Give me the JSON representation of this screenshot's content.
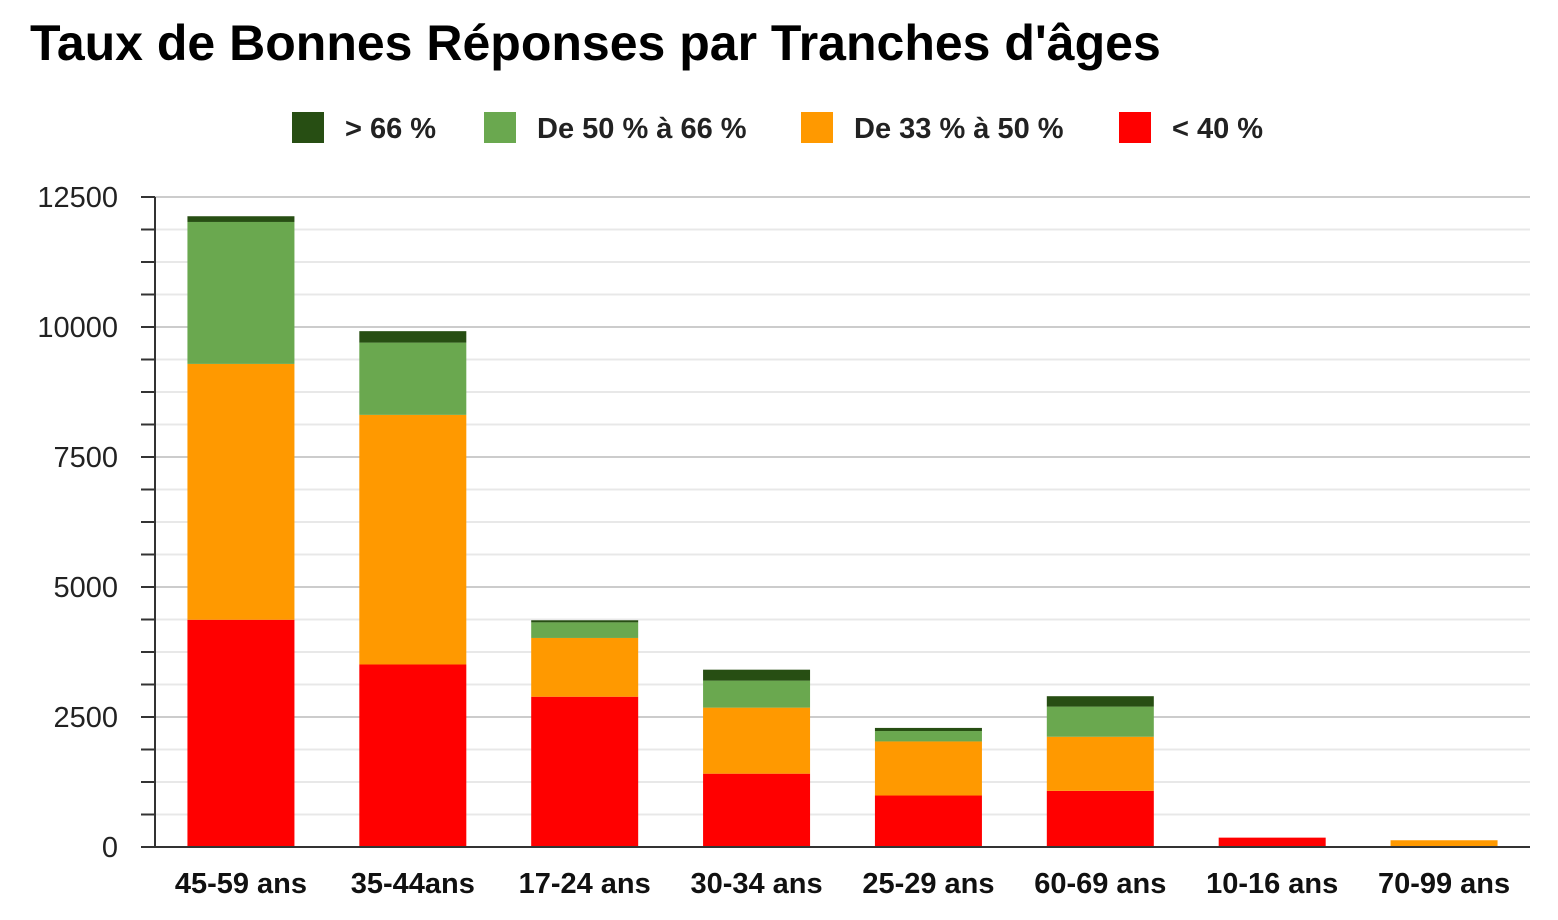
{
  "chart_data": {
    "type": "bar",
    "stacked": true,
    "title": "Taux de Bonnes Réponses par Tranches d'âges",
    "xlabel": "",
    "ylabel": "",
    "ylim": [
      0,
      12500
    ],
    "yticks": [
      "0",
      "2500",
      "5000",
      "7500",
      "10000",
      "12500"
    ],
    "grid": true,
    "legend_position": "top",
    "categories": [
      "45-59 ans",
      "35-44ans",
      "17-24 ans",
      "30-34 ans",
      "25-29 ans",
      "60-69 ans",
      "10-16 ans",
      "70-99 ans"
    ],
    "series": [
      {
        "name": "< 40 %",
        "color": "#ff0000",
        "values": [
          4370,
          3510,
          2890,
          1410,
          990,
          1080,
          180,
          0
        ]
      },
      {
        "name": "De 33 % à 50 %",
        "color": "#ff9900",
        "values": [
          4920,
          4800,
          1130,
          1270,
          1040,
          1040,
          0,
          130
        ]
      },
      {
        "name": "De 50 % à 66 %",
        "color": "#6aa84f",
        "values": [
          2730,
          1390,
          300,
          520,
          200,
          580,
          0,
          0
        ]
      },
      {
        "name": "> 66 %",
        "color": "#274e13",
        "values": [
          110,
          220,
          40,
          210,
          60,
          200,
          0,
          0
        ]
      }
    ],
    "legend_order": [
      3,
      2,
      1,
      0
    ]
  }
}
